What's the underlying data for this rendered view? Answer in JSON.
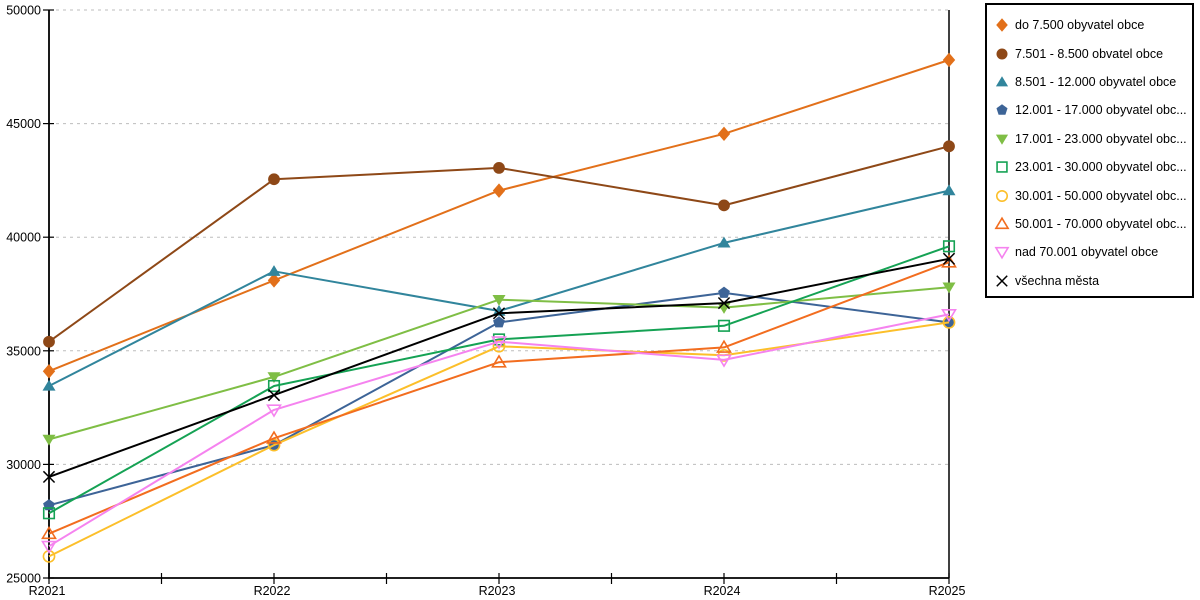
{
  "chart_data": {
    "type": "line",
    "title": "",
    "xlabel": "",
    "ylabel": "",
    "categories": [
      "R2021",
      "R2022",
      "R2023",
      "R2024",
      "R2025"
    ],
    "ylim": [
      25000,
      50000
    ],
    "ytick_step": 5000,
    "ytick_labels": [
      "25000",
      "30000",
      "35000",
      "40000",
      "45000",
      "50000"
    ],
    "grid": "horizontal-dashed",
    "grid_color": "#bdbdbd",
    "legend_position": "top-right",
    "series": [
      {
        "label": "do 7.500 obyvatel obce",
        "marker": "diamond-filled",
        "color": "#e2701a",
        "values": [
          34100,
          38100,
          42050,
          44550,
          47800
        ]
      },
      {
        "label": "7.501 - 8.500 obvatel obce",
        "marker": "circle-filled",
        "color": "#8e4817",
        "values": [
          35400,
          42550,
          43050,
          41400,
          44000
        ]
      },
      {
        "label": "8.501 - 12.000 obyvatel obce",
        "marker": "triangle-up-filled",
        "color": "#31859c",
        "values": [
          33450,
          38500,
          36750,
          39750,
          42050
        ]
      },
      {
        "label": "12.001 - 17.000 obyvatel obc...",
        "marker": "pentagon-filled",
        "color": "#3d6497",
        "values": [
          28200,
          30850,
          36250,
          37550,
          36250
        ]
      },
      {
        "label": "17.001 - 23.000 obyvatel obc...",
        "marker": "triangle-down-filled",
        "color": "#7fbe45",
        "values": [
          31100,
          33850,
          37250,
          36900,
          37800
        ]
      },
      {
        "label": "23.001 - 30.000 obyvatel obc...",
        "marker": "square-hollow",
        "color": "#15a254",
        "values": [
          27850,
          33450,
          35500,
          36100,
          39600
        ]
      },
      {
        "label": "30.001 - 50.000 obyvatel obc...",
        "marker": "circle-hollow",
        "color": "#fcbf2a",
        "values": [
          25950,
          30850,
          35200,
          34800,
          36250
        ]
      },
      {
        "label": "50.001 - 70.000 obyvatel obc...",
        "marker": "triangle-up-hollow",
        "color": "#f26d1f",
        "values": [
          26950,
          31150,
          34500,
          35150,
          38900
        ]
      },
      {
        "label": "nad 70.001 obyvatel obce",
        "marker": "triangle-down-hollow",
        "color": "#f583ef",
        "values": [
          26400,
          32400,
          35400,
          34600,
          36600
        ]
      },
      {
        "label": "všechna města",
        "marker": "x",
        "color": "#000000",
        "values": [
          29450,
          33050,
          36650,
          37100,
          39050
        ]
      }
    ]
  }
}
